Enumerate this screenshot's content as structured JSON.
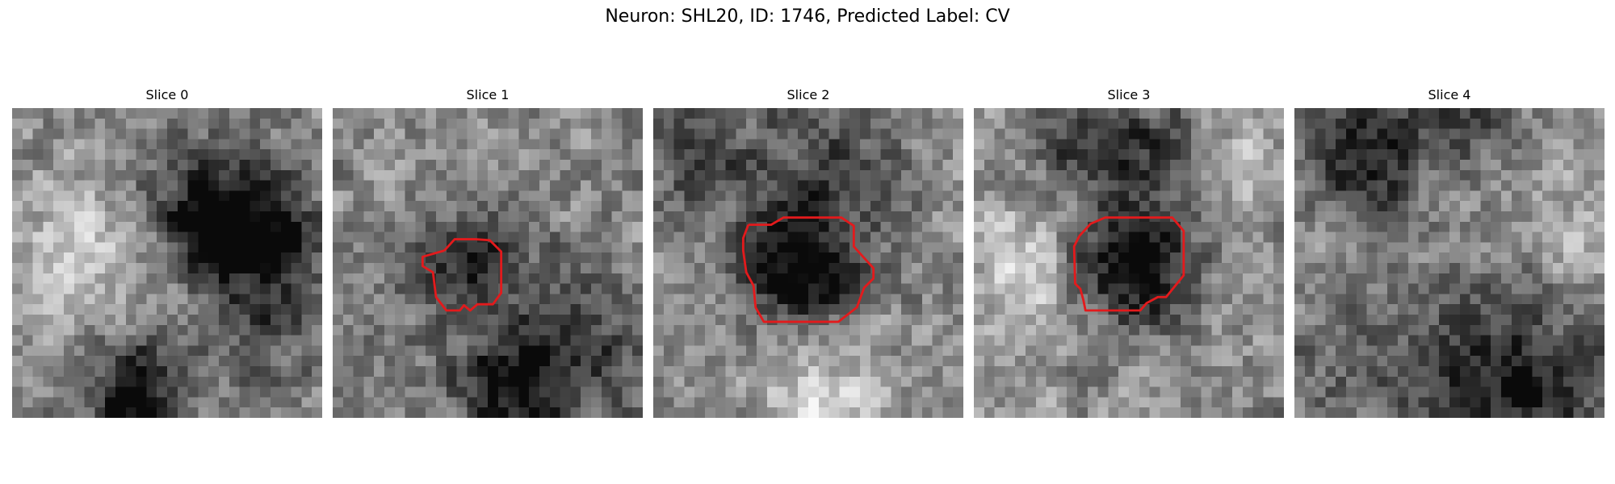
{
  "figure": {
    "title": "Neuron: SHL20, ID: 1746, Predicted Label: CV",
    "grid_size": 30,
    "outline_color": "#e31a1c"
  },
  "slices": [
    {
      "title": "Slice 0",
      "seed": 11,
      "dark_blobs": [
        [
          18,
          10,
          5,
          0.45
        ],
        [
          22,
          11,
          4,
          0.35
        ],
        [
          14,
          17,
          6,
          -0.25
        ],
        [
          12,
          24,
          4,
          0.35
        ],
        [
          6,
          12,
          5,
          -0.15
        ],
        [
          23,
          18,
          6,
          0.3
        ],
        [
          11,
          29,
          3,
          0.4
        ]
      ],
      "outline": []
    },
    {
      "title": "Slice 1",
      "seed": 23,
      "dark_blobs": [
        [
          13,
          14,
          3,
          0.45
        ],
        [
          22,
          24,
          6,
          0.35
        ],
        [
          16,
          27,
          4,
          0.3
        ],
        [
          5,
          18,
          5,
          0.1
        ]
      ],
      "outline": [
        [
          10.8,
          13.8
        ],
        [
          11.8,
          12.7
        ],
        [
          13.8,
          12.7
        ],
        [
          15.2,
          12.8
        ],
        [
          16.3,
          13.9
        ],
        [
          16.3,
          17.9
        ],
        [
          15.5,
          19.0
        ],
        [
          14.0,
          19.0
        ],
        [
          13.3,
          19.6
        ],
        [
          12.7,
          19.1
        ],
        [
          12.3,
          19.6
        ],
        [
          11.0,
          19.6
        ],
        [
          10.0,
          18.3
        ],
        [
          9.7,
          15.9
        ],
        [
          8.7,
          15.3
        ],
        [
          8.7,
          14.4
        ],
        [
          10.8,
          13.8
        ]
      ]
    },
    {
      "title": "Slice 2",
      "seed": 37,
      "dark_blobs": [
        [
          14,
          15,
          4,
          0.55
        ],
        [
          16,
          5,
          6,
          0.25
        ],
        [
          3,
          5,
          5,
          0.2
        ],
        [
          15,
          28,
          4,
          -0.25
        ]
      ],
      "outline": [
        [
          9.2,
          11.3
        ],
        [
          11.4,
          11.3
        ],
        [
          12.6,
          10.6
        ],
        [
          18.2,
          10.6
        ],
        [
          19.4,
          11.4
        ],
        [
          19.4,
          13.4
        ],
        [
          20.3,
          14.4
        ],
        [
          21.3,
          15.5
        ],
        [
          21.3,
          16.5
        ],
        [
          20.4,
          17.4
        ],
        [
          19.7,
          19.3
        ],
        [
          17.9,
          20.7
        ],
        [
          10.7,
          20.7
        ],
        [
          9.9,
          19.3
        ],
        [
          9.7,
          17.2
        ],
        [
          9.0,
          15.9
        ],
        [
          8.7,
          13.8
        ],
        [
          8.7,
          12.6
        ],
        [
          9.2,
          11.3
        ]
      ]
    },
    {
      "title": "Slice 3",
      "seed": 41,
      "dark_blobs": [
        [
          15,
          15,
          4,
          0.6
        ],
        [
          16,
          4,
          5,
          0.3
        ],
        [
          10,
          2,
          3,
          0.25
        ],
        [
          4,
          15,
          4,
          -0.3
        ],
        [
          24,
          5,
          4,
          -0.2
        ]
      ],
      "outline": [
        [
          10.2,
          12.4
        ],
        [
          11.3,
          11.2
        ],
        [
          12.7,
          10.6
        ],
        [
          19.2,
          10.6
        ],
        [
          20.3,
          11.9
        ],
        [
          20.3,
          16.2
        ],
        [
          18.6,
          18.3
        ],
        [
          17.8,
          18.3
        ],
        [
          16.7,
          18.9
        ],
        [
          16.1,
          19.6
        ],
        [
          14.2,
          19.6
        ],
        [
          10.8,
          19.6
        ],
        [
          10.6,
          18.6
        ],
        [
          10.3,
          17.5
        ],
        [
          9.8,
          17.0
        ],
        [
          9.7,
          13.4
        ],
        [
          10.2,
          12.4
        ]
      ]
    },
    {
      "title": "Slice 4",
      "seed": 53,
      "dark_blobs": [
        [
          7,
          4,
          4,
          0.45
        ],
        [
          17,
          1,
          3,
          0.25
        ],
        [
          20,
          27,
          7,
          0.45
        ],
        [
          5,
          25,
          5,
          0.15
        ],
        [
          27,
          12,
          4,
          -0.15
        ]
      ],
      "outline": []
    }
  ]
}
